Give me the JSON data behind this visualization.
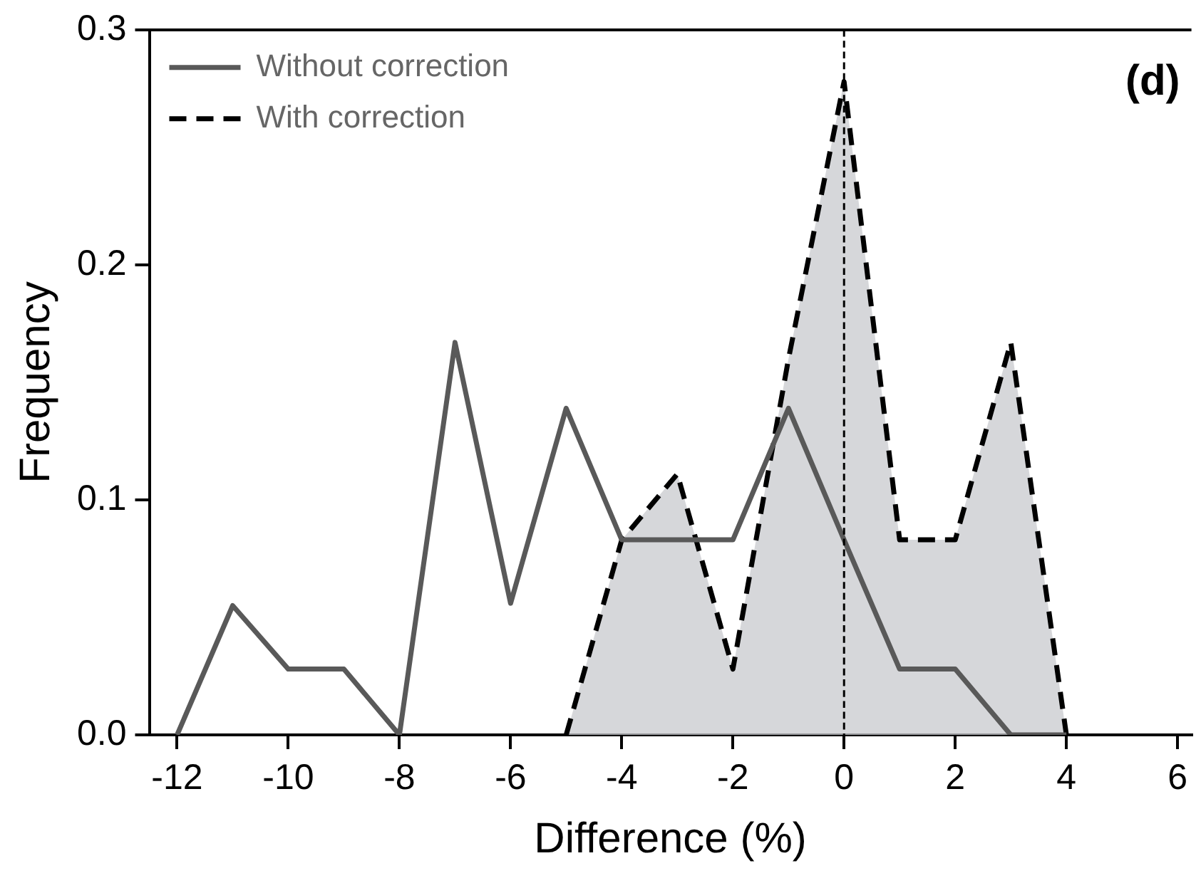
{
  "chart_data": {
    "type": "line",
    "xlabel": "Difference (%)",
    "ylabel": "Frequency",
    "xlim": [
      -12.5,
      6.25
    ],
    "xticks": [
      -12,
      -10,
      -8,
      -6,
      -4,
      -2,
      0,
      2,
      4,
      6
    ],
    "ylim": [
      0,
      0.3
    ],
    "yticks": [
      {
        "value": 0,
        "label": "0.0"
      },
      {
        "value": 0.1,
        "label": "0.1"
      },
      {
        "value": 0.2,
        "label": "0.2"
      },
      {
        "value": 0.3,
        "label": "0.3"
      }
    ],
    "series": [
      {
        "name": "Without correction",
        "type": "line",
        "line_style": "solid",
        "color": "#595959",
        "x": [
          -12,
          -11,
          -10,
          -9,
          -8,
          -7,
          -6,
          -5,
          -4,
          -3,
          -2,
          -1,
          0,
          1,
          2,
          3,
          4
        ],
        "values": [
          0,
          0.055,
          0.028,
          0.028,
          0,
          0.167,
          0.056,
          0.139,
          0.083,
          0.083,
          0.083,
          0.139,
          0.083,
          0.028,
          0.028,
          0,
          0
        ]
      },
      {
        "name": "With correction",
        "type": "area",
        "line_style": "dashed",
        "color": "#000000",
        "x": [
          -5,
          -4,
          -3,
          -2,
          -1,
          0,
          1,
          2,
          3,
          4
        ],
        "values": [
          0,
          0.083,
          0.111,
          0.028,
          0.16,
          0.278,
          0.083,
          0.083,
          0.167,
          0
        ]
      }
    ],
    "ref_lines": [
      {
        "axis": "x",
        "value": 0,
        "line_style": "dashed",
        "color": "#000000"
      }
    ],
    "annotations": [
      "(d)"
    ],
    "legend": "top left",
    "grid": false,
    "marker": "none"
  }
}
